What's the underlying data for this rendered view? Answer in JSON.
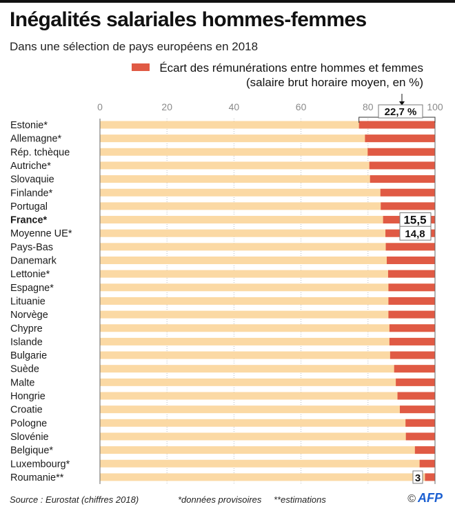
{
  "title": "Inégalités salariales hommes-femmes",
  "subtitle": "Dans une sélection de pays européens en 2018",
  "legend": {
    "line1": "Écart des rémunérations entre hommes et femmes",
    "line2": "(salaire brut horaire moyen, en %)",
    "color": "#e05a44"
  },
  "colors": {
    "gap": "#e05a44",
    "background_bar": "#fbd9a4"
  },
  "footer": {
    "source": "Source : Eurostat (chiffres 2018)",
    "note1": "*données provisoires",
    "note2": "**estimations",
    "copyright": "©",
    "brand": "AFP"
  },
  "chart_data": {
    "type": "bar",
    "orientation": "horizontal",
    "title": "Inégalités salariales hommes-femmes",
    "subtitle": "Dans une sélection de pays européens en 2018",
    "xlabel": "Écart des rémunérations entre hommes et femmes (salaire brut horaire moyen, en %)",
    "xlim": [
      0,
      100
    ],
    "xticks": [
      0,
      20,
      40,
      60,
      80,
      100
    ],
    "grid": true,
    "bars_anchored": "right",
    "categories": [
      "Estonie*",
      "Allemagne*",
      "Rép. tchèque",
      "Autriche*",
      "Slovaquie",
      "Finlande*",
      "Portugal",
      "France*",
      "Moyenne UE*",
      "Pays-Bas",
      "Danemark",
      "Lettonie*",
      "Espagne*",
      "Lituanie",
      "Norvège",
      "Chypre",
      "Islande",
      "Bulgarie",
      "Suède",
      "Malte",
      "Hongrie",
      "Croatie",
      "Pologne",
      "Slovénie",
      "Belgique*",
      "Luxembourg*",
      "Roumanie**"
    ],
    "values": [
      22.7,
      20.9,
      20.1,
      19.6,
      19.4,
      16.3,
      16.2,
      15.5,
      14.8,
      14.7,
      14.4,
      14.0,
      13.9,
      13.9,
      13.9,
      13.6,
      13.6,
      13.4,
      12.2,
      11.7,
      11.2,
      10.5,
      8.8,
      8.7,
      6.0,
      4.6,
      3.0
    ],
    "highlight": "France*",
    "annotations": [
      {
        "category": "Estonie*",
        "text": "22,7 %"
      },
      {
        "category": "France*",
        "text": "15,5"
      },
      {
        "category": "Moyenne UE*",
        "text": "14,8"
      },
      {
        "category": "Roumanie**",
        "text": "3"
      }
    ]
  }
}
